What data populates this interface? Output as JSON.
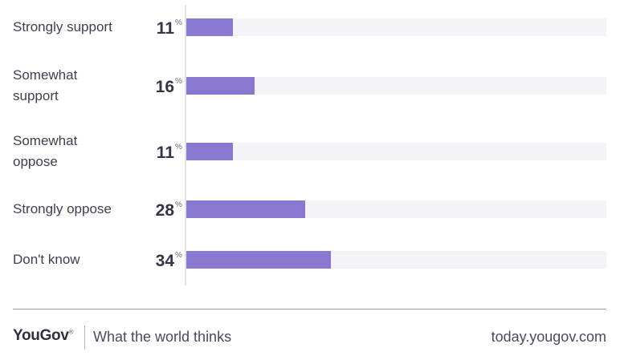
{
  "chart_data": {
    "type": "bar",
    "orientation": "horizontal",
    "categories": [
      [
        "Strongly support"
      ],
      [
        "Somewhat",
        "support"
      ],
      [
        "Somewhat",
        "oppose"
      ],
      [
        "Strongly oppose"
      ],
      [
        "Don't know"
      ]
    ],
    "values": [
      11,
      16,
      11,
      28,
      34
    ],
    "value_labels": [
      "11",
      "16",
      "11",
      "28",
      "34"
    ],
    "value_suffix": "%",
    "xlim": [
      0,
      100
    ],
    "grid": false,
    "bar_color": "#8a78d0",
    "track_color": "#f4f4f8"
  },
  "footer": {
    "brand": "YouGov",
    "brand_mark": "®",
    "tagline": "What the world thinks",
    "url": "today.yougov.com"
  }
}
